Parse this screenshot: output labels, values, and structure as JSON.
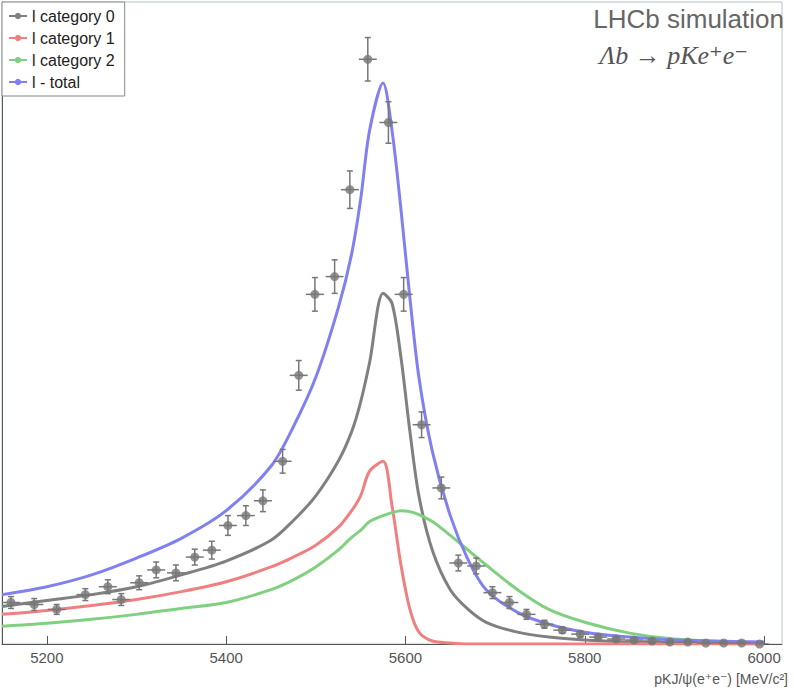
{
  "chart_data": {
    "type": "line",
    "annotations": [
      "LHCb simulation",
      "Λb → pKe⁺e⁻"
    ],
    "x_label": "pKJ/ψ(e⁺e⁻) [MeV/c²]",
    "xlim": [
      5150,
      6020
    ],
    "xticks": [
      5200,
      5400,
      5600,
      5800,
      6000
    ],
    "ylim": [
      0,
      650
    ],
    "tick_labels": "x",
    "grid": false,
    "legend": "top-left",
    "x": [
      5150,
      5200,
      5250,
      5300,
      5350,
      5400,
      5450,
      5475,
      5500,
      5525,
      5540,
      5550,
      5560,
      5575,
      5585,
      5595,
      5605,
      5615,
      5630,
      5650,
      5670,
      5690,
      5725,
      5760,
      5800,
      5850,
      5900,
      6000
    ],
    "series": [
      {
        "name": "l category 0",
        "color": "#808080",
        "line_style": "solid",
        "values": [
          38,
          44,
          50,
          58,
          70,
          84,
          105,
          125,
          150,
          185,
          215,
          245,
          285,
          355,
          345,
          290,
          215,
          150,
          95,
          55,
          35,
          22,
          12,
          7,
          4,
          2,
          1,
          0
        ]
      },
      {
        "name": "l category 1",
        "color": "#f08080",
        "line_style": "solid",
        "values": [
          30,
          34,
          39,
          45,
          53,
          63,
          78,
          88,
          100,
          118,
          135,
          150,
          175,
          185,
          140,
          80,
          35,
          12,
          3,
          1,
          0,
          0,
          0,
          0,
          0,
          0,
          0,
          0
        ]
      },
      {
        "name": "l category 2",
        "color": "#80d080",
        "line_style": "solid",
        "values": [
          18,
          21,
          25,
          30,
          36,
          42,
          55,
          65,
          78,
          95,
          108,
          115,
          124,
          130,
          133,
          135,
          134,
          131,
          124,
          110,
          95,
          80,
          55,
          35,
          22,
          11,
          5,
          1
        ]
      },
      {
        "name": "l - total",
        "color": "#8080f0",
        "line_style": "solid",
        "values": [
          50,
          58,
          70,
          87,
          107,
          135,
          180,
          220,
          270,
          340,
          395,
          450,
          520,
          568,
          520,
          440,
          350,
          270,
          195,
          130,
          85,
          55,
          32,
          20,
          12,
          7,
          4,
          2
        ]
      }
    ],
    "points": {
      "type": "scatter",
      "color": "#777777",
      "marker": "circle",
      "x": [
        5160,
        5186,
        5211,
        5243,
        5268,
        5283,
        5303,
        5322,
        5344,
        5365,
        5384,
        5402,
        5422,
        5441,
        5463,
        5481,
        5499,
        5521,
        5538,
        5558,
        5581,
        5598,
        5618,
        5640,
        5659,
        5679,
        5697,
        5716,
        5735,
        5755,
        5775,
        5795,
        5815,
        5835,
        5855,
        5875,
        5895,
        5915,
        5935,
        5955,
        5975,
        5995
      ],
      "values": [
        42,
        40,
        35,
        50,
        58,
        45,
        62,
        75,
        72,
        88,
        95,
        120,
        130,
        145,
        185,
        272,
        354,
        372,
        460,
        592,
        528,
        354,
        222,
        158,
        82,
        79,
        52,
        42,
        30,
        20,
        14,
        10,
        7,
        5,
        4,
        3,
        2,
        2,
        1,
        1,
        1,
        0
      ],
      "xerr": [
        10,
        10,
        10,
        10,
        10,
        10,
        10,
        10,
        10,
        10,
        10,
        10,
        10,
        10,
        10,
        10,
        10,
        10,
        10,
        10,
        10,
        10,
        10,
        10,
        10,
        10,
        10,
        10,
        10,
        10,
        10,
        10,
        10,
        10,
        10,
        10,
        10,
        10,
        10,
        10,
        10,
        10
      ],
      "yerr": [
        6,
        6,
        5,
        6,
        7,
        6,
        7,
        8,
        8,
        8,
        9,
        10,
        10,
        11,
        12,
        15,
        17,
        17,
        19,
        22,
        21,
        17,
        13,
        11,
        8,
        8,
        6,
        6,
        5,
        4,
        3,
        3,
        2,
        2,
        2,
        2,
        1,
        1,
        1,
        1,
        1,
        1
      ]
    }
  }
}
